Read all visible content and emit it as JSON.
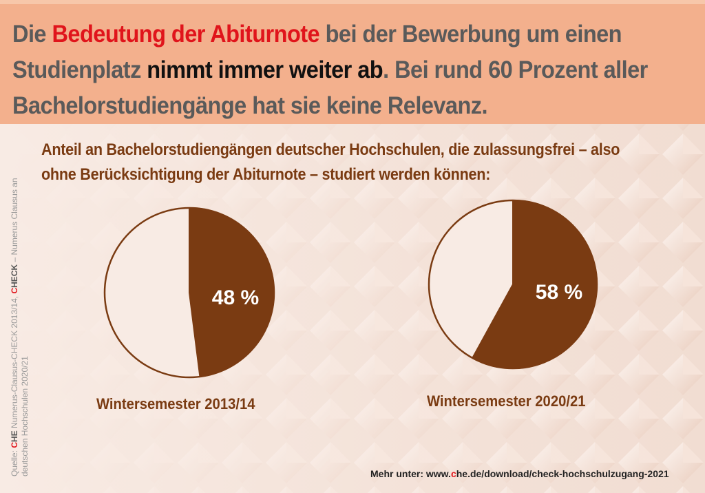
{
  "headline": {
    "part1": "Die ",
    "highlight_red": "Bedeutung der Abiturnote",
    "part2": " bei der Bewerbung um einen Studienplatz ",
    "highlight_black": "nimmt immer weiter ab",
    "part3": ". Bei rund 60 Prozent aller Bachelorstudiengänge hat sie keine Relevanz."
  },
  "subtitle": "Anteil an Bachelorstudiengängen deutscher Hochschulen, die zulassungsfrei – also ohne Berücksichtigung der Abiturnote – studiert werden können:",
  "colors": {
    "accent_brown": "#7a3b12",
    "header_bg": "#f3b08d",
    "highlight_red": "#e0141b",
    "pie_empty": "#f8ebe4"
  },
  "chart_data": [
    {
      "type": "pie",
      "title": "Wintersemester 2013/14",
      "values": [
        48,
        52
      ],
      "value_label": "48 %",
      "highlighted_value": 48
    },
    {
      "type": "pie",
      "title": "Wintersemester 2020/21",
      "values": [
        58,
        42
      ],
      "value_label": "58 %",
      "highlighted_value": 58
    }
  ],
  "source": {
    "prefix": "Quelle: ",
    "che_c": "C",
    "che_he": "HE",
    "line1_rest": " Numerus-Clausus-CHECK 2013/14, ",
    "check_c": "C",
    "check_heck": "HECK",
    "line1_end": " – Numerus Clausus an",
    "line2": "deutschen Hochschulen 2020/21"
  },
  "footer": {
    "prefix": "Mehr unter: www.",
    "c_red": "c",
    "suffix": "he.de/download/check-hochschulzugang-2021"
  }
}
